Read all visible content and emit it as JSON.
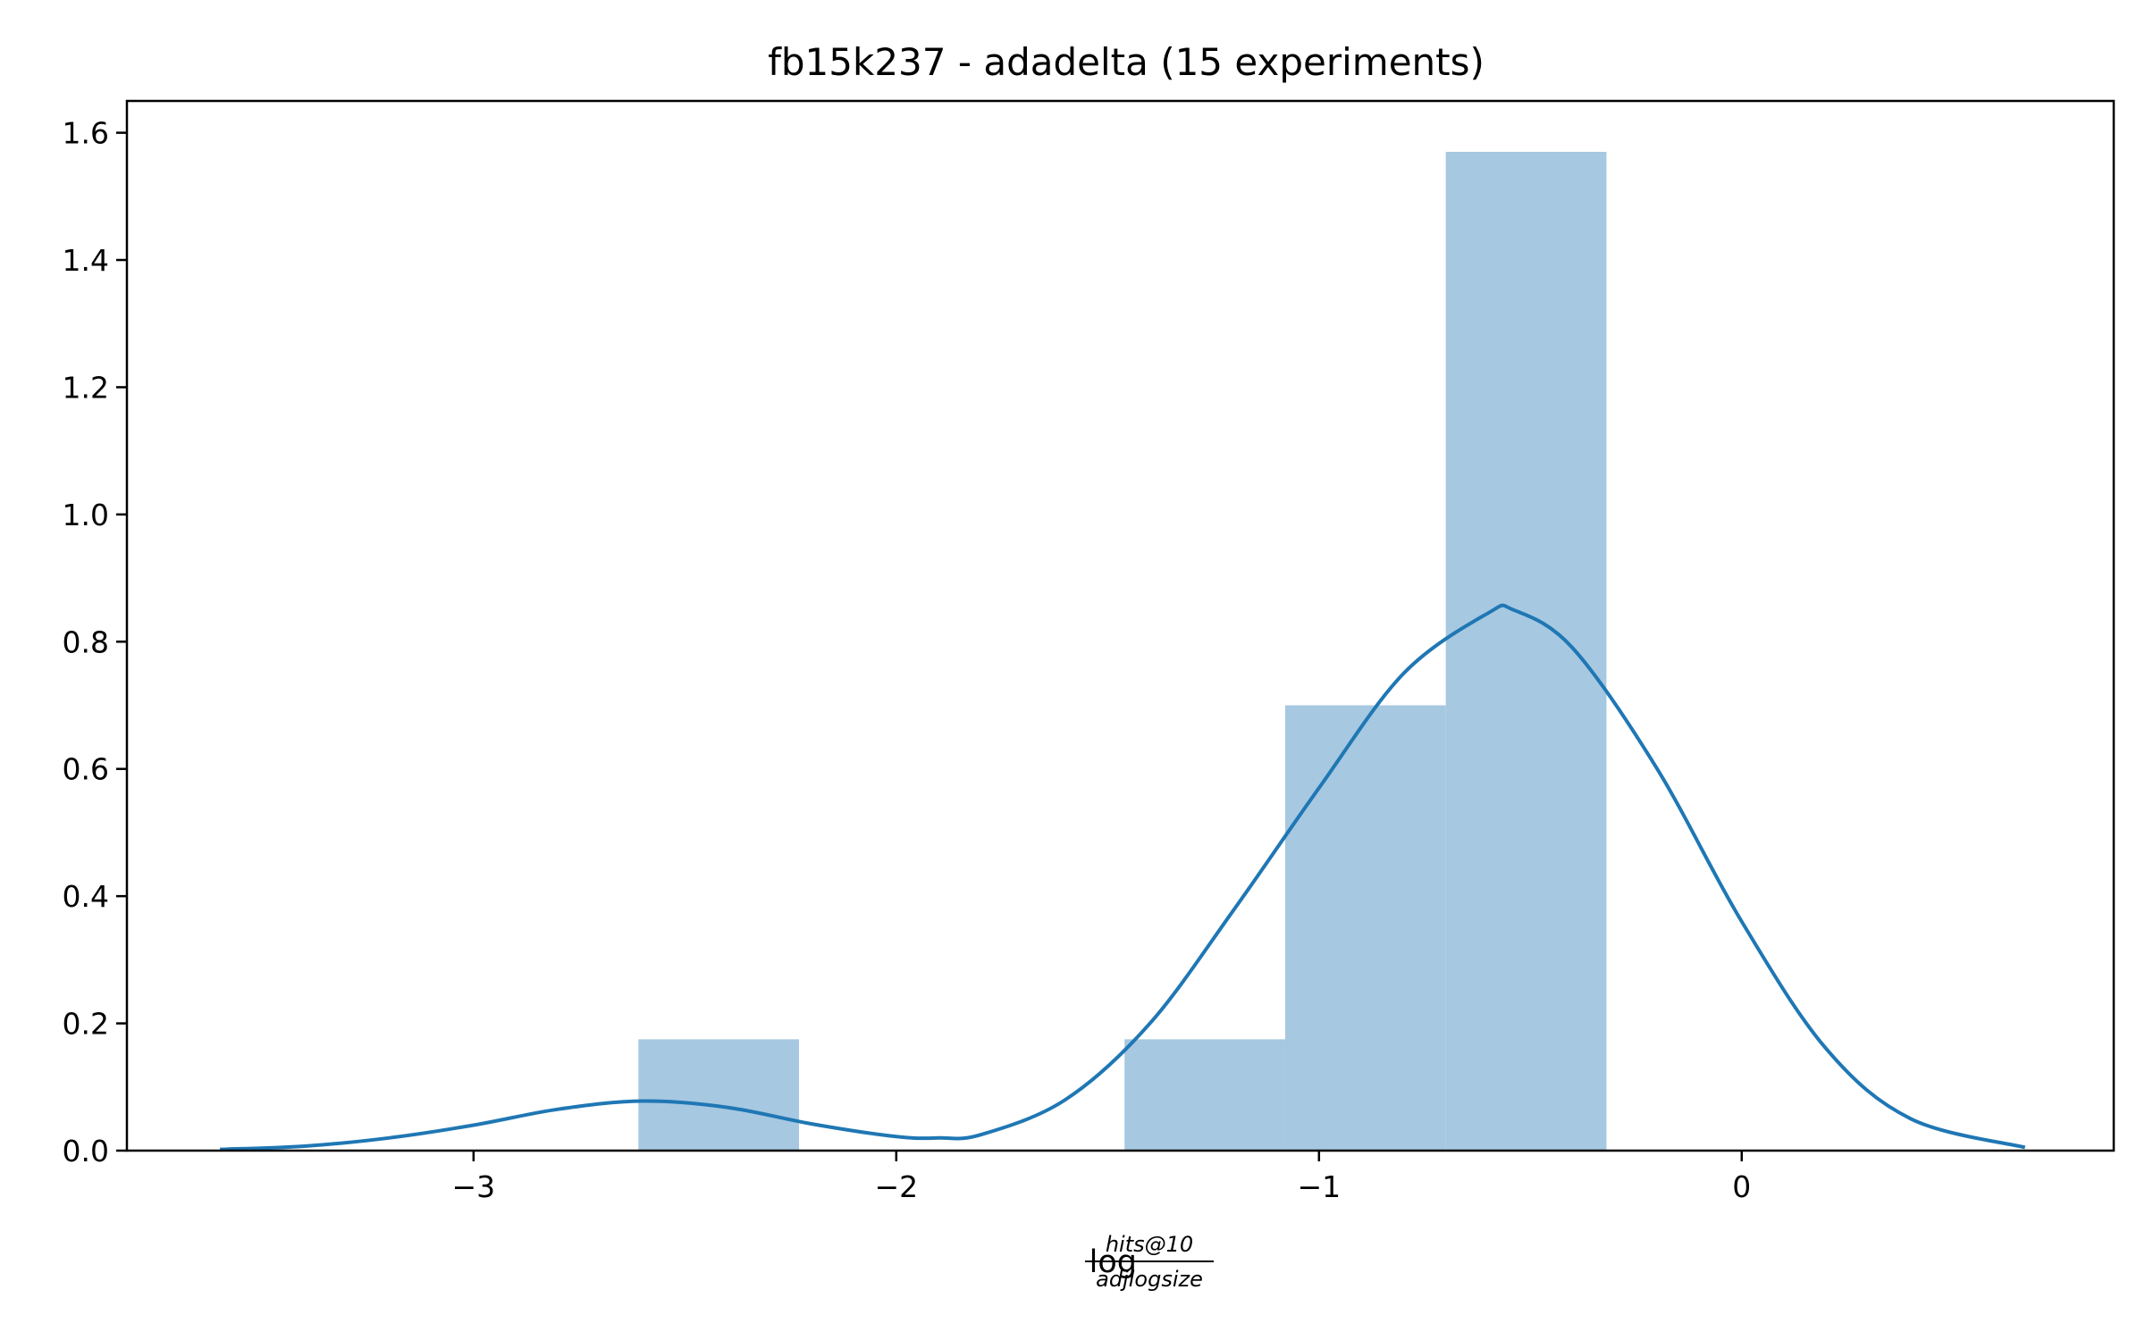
{
  "chart_data": {
    "type": "histogram",
    "title": "fb15k237 - adadelta (15 experiments)",
    "xlabel": {
      "prefix": "log",
      "numerator": "hits@10",
      "denominator": "adjlogsize"
    },
    "ylabel": "",
    "xlim": [
      -3.82,
      0.88
    ],
    "ylim": [
      0,
      1.65
    ],
    "xticks": [
      {
        "value": -3,
        "label": "−3"
      },
      {
        "value": -2,
        "label": "−2"
      },
      {
        "value": -1,
        "label": "−1"
      },
      {
        "value": 0,
        "label": "0"
      }
    ],
    "yticks": [
      {
        "value": 0.0,
        "label": "0.0"
      },
      {
        "value": 0.2,
        "label": "0.2"
      },
      {
        "value": 0.4,
        "label": "0.4"
      },
      {
        "value": 0.6,
        "label": "0.6"
      },
      {
        "value": 0.8,
        "label": "0.8"
      },
      {
        "value": 1.0,
        "label": "1.0"
      },
      {
        "value": 1.2,
        "label": "1.2"
      },
      {
        "value": 1.4,
        "label": "1.4"
      },
      {
        "value": 1.6,
        "label": "1.6"
      }
    ],
    "bins": [
      {
        "x0": -2.61,
        "x1": -2.23,
        "density": 0.175
      },
      {
        "x0": -1.46,
        "x1": -1.08,
        "density": 0.175
      },
      {
        "x0": -1.08,
        "x1": -0.7,
        "density": 0.7
      },
      {
        "x0": -0.7,
        "x1": -0.32,
        "density": 1.57
      }
    ],
    "kde": {
      "x": [
        -3.6,
        -3.4,
        -3.2,
        -3.0,
        -2.8,
        -2.6,
        -2.4,
        -2.2,
        -2.0,
        -1.9,
        -1.8,
        -1.6,
        -1.4,
        -1.2,
        -1.0,
        -0.8,
        -0.6,
        -0.54,
        -0.4,
        -0.2,
        0.0,
        0.2,
        0.4,
        0.67
      ],
      "y": [
        0.002,
        0.007,
        0.02,
        0.04,
        0.065,
        0.078,
        0.068,
        0.042,
        0.022,
        0.02,
        0.025,
        0.08,
        0.2,
        0.38,
        0.57,
        0.75,
        0.845,
        0.85,
        0.79,
        0.6,
        0.36,
        0.16,
        0.05,
        0.005
      ]
    },
    "colors": {
      "bar": "#a6c8e1",
      "line": "#1f77b4",
      "axis": "#000000"
    },
    "grid": false,
    "legend": "none"
  }
}
